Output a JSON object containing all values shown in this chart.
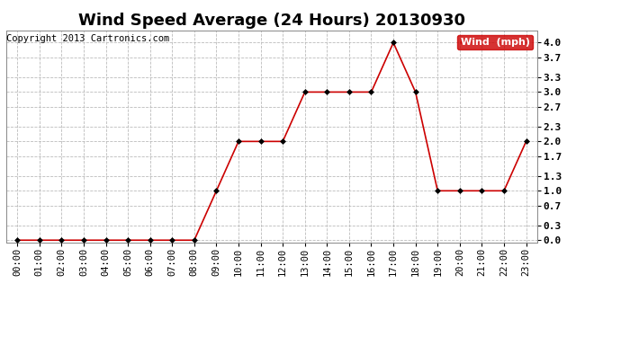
{
  "title": "Wind Speed Average (24 Hours) 20130930",
  "copyright": "Copyright 2013 Cartronics.com",
  "legend_label": "Wind  (mph)",
  "x_labels": [
    "00:00",
    "01:00",
    "02:00",
    "03:00",
    "04:00",
    "05:00",
    "06:00",
    "07:00",
    "08:00",
    "09:00",
    "10:00",
    "11:00",
    "12:00",
    "13:00",
    "14:00",
    "15:00",
    "16:00",
    "17:00",
    "18:00",
    "19:00",
    "20:00",
    "21:00",
    "22:00",
    "23:00"
  ],
  "y_values": [
    0.0,
    0.0,
    0.0,
    0.0,
    0.0,
    0.0,
    0.0,
    0.0,
    0.0,
    1.0,
    2.0,
    2.0,
    2.0,
    3.0,
    3.0,
    3.0,
    3.0,
    4.0,
    3.0,
    1.0,
    1.0,
    1.0,
    1.0,
    2.0
  ],
  "line_color": "#cc0000",
  "marker_color": "#000000",
  "bg_color": "#ffffff",
  "plot_bg_color": "#ffffff",
  "grid_color": "#bbbbbb",
  "y_ticks": [
    0.0,
    0.3,
    0.7,
    1.0,
    1.3,
    1.7,
    2.0,
    2.3,
    2.7,
    3.0,
    3.3,
    3.7,
    4.0
  ],
  "ylim": [
    -0.05,
    4.25
  ],
  "legend_bg": "#cc0000",
  "legend_text_color": "#ffffff",
  "title_fontsize": 13,
  "tick_fontsize": 7.5,
  "copyright_fontsize": 7.5
}
